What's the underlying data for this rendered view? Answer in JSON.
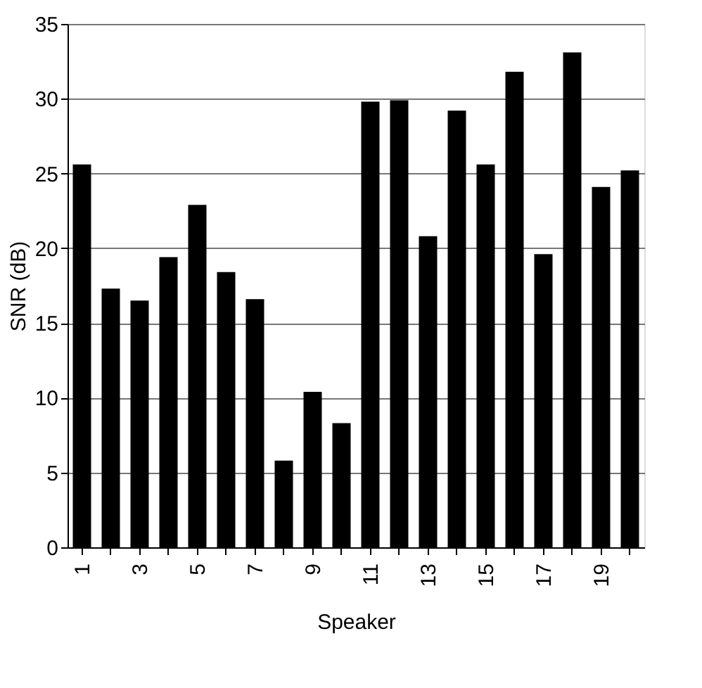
{
  "chart_data": {
    "type": "bar",
    "xlabel": "Speaker",
    "ylabel": "SNR (dB)",
    "categories": [
      "1",
      null,
      "3",
      null,
      "5",
      null,
      "7",
      null,
      "9",
      null,
      "11",
      null,
      "13",
      null,
      "15",
      null,
      "17",
      null,
      "19",
      null
    ],
    "values": [
      25.6,
      17.3,
      16.5,
      19.4,
      22.9,
      18.4,
      16.6,
      5.8,
      10.4,
      8.3,
      29.8,
      29.9,
      20.8,
      29.2,
      25.6,
      31.8,
      19.6,
      33.1,
      24.1,
      25.2
    ],
    "color": "#000000",
    "ylim": [
      0,
      35
    ],
    "yticks": [
      0,
      5,
      10,
      15,
      20,
      25,
      30,
      35
    ],
    "grid": "y"
  }
}
